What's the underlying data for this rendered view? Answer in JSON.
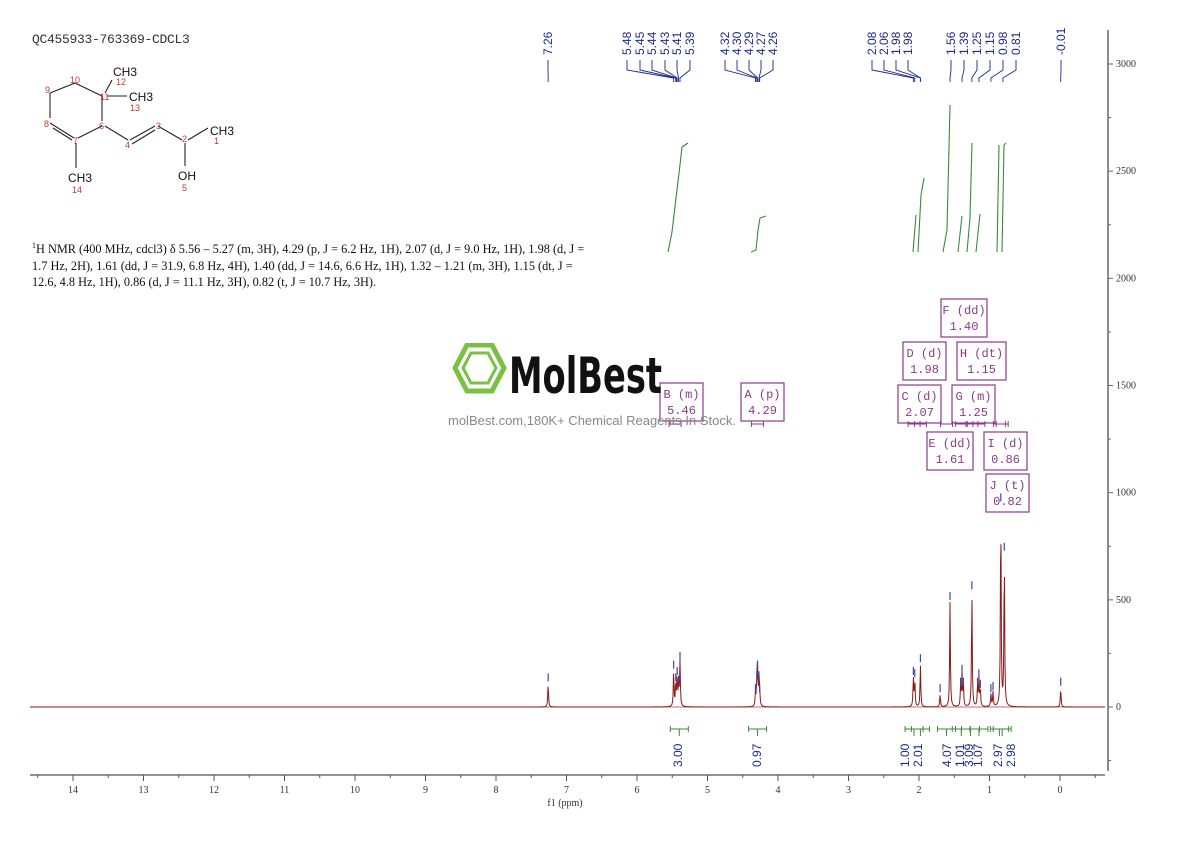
{
  "sample_id": "QC455933-763369-CDCL3",
  "structure": {
    "atoms": [
      {
        "label": "CH3",
        "num": "12"
      },
      {
        "label": "CH3",
        "num": "13"
      },
      {
        "label": "CH3",
        "num": "1"
      },
      {
        "label": "OH",
        "num": "5"
      },
      {
        "label": "CH3",
        "num": "14"
      }
    ],
    "numbers": [
      "1",
      "2",
      "3",
      "4",
      "5",
      "6",
      "7",
      "8",
      "9",
      "10",
      "11",
      "12",
      "13",
      "14"
    ]
  },
  "nmr_description": {
    "prefix_sup": "1",
    "text": "H NMR (400 MHz, cdcl3) δ 5.56 – 5.27 (m, 3H), 4.29 (p, J = 6.2 Hz, 1H), 2.07 (d, J = 9.0 Hz, 1H), 1.98 (d, J = 1.7 Hz, 2H), 1.61 (dd, J = 31.9, 6.8 Hz, 4H), 1.40 (dd, J = 14.6, 6.6 Hz, 1H), 1.32 – 1.21 (m, 3H), 1.15 (dt, J = 12.6, 4.8 Hz, 1H), 0.86 (d, J = 11.1 Hz, 3H), 0.82 (t, J = 10.7 Hz, 3H)."
  },
  "watermark": {
    "brand": "MolBest",
    "tagline": "molBest.com,180K+ Chemical Reagents In Stock."
  },
  "chart_data": {
    "type": "line",
    "title": "QC455933-763369-CDCL3",
    "xlabel": "f1 (ppm)",
    "ylabel": "",
    "xlim": [
      14.6,
      -0.6
    ],
    "ylim": [
      -300,
      3200
    ],
    "x_ticks": [
      "14",
      "13",
      "12",
      "11",
      "10",
      "9",
      "8",
      "7",
      "6",
      "5",
      "4",
      "3",
      "2",
      "1",
      "0"
    ],
    "y_ticks": [
      "0",
      "500",
      "1000",
      "1500",
      "2000",
      "2500",
      "3000"
    ],
    "grid": false,
    "peak_labels": [
      "7.26",
      "5.48",
      "5.45",
      "5.44",
      "5.43",
      "5.41",
      "5.39",
      "4.32",
      "4.30",
      "4.29",
      "4.27",
      "4.26",
      "2.08",
      "2.06",
      "1.98",
      "1.98",
      "1.56",
      "1.39",
      "1.25",
      "1.15",
      "0.98",
      "0.81",
      "-0.01"
    ],
    "peaks": [
      {
        "ppm": 7.26,
        "intensity": 110
      },
      {
        "ppm": 5.48,
        "intensity": 170
      },
      {
        "ppm": 5.45,
        "intensity": 110
      },
      {
        "ppm": 5.43,
        "intensity": 140
      },
      {
        "ppm": 5.41,
        "intensity": 100
      },
      {
        "ppm": 5.39,
        "intensity": 210
      },
      {
        "ppm": 4.32,
        "intensity": 60
      },
      {
        "ppm": 4.3,
        "intensity": 120
      },
      {
        "ppm": 4.29,
        "intensity": 170
      },
      {
        "ppm": 4.27,
        "intensity": 120
      },
      {
        "ppm": 4.26,
        "intensity": 60
      },
      {
        "ppm": 2.08,
        "intensity": 140
      },
      {
        "ppm": 2.06,
        "intensity": 130
      },
      {
        "ppm": 1.98,
        "intensity": 200
      },
      {
        "ppm": 1.7,
        "intensity": 60
      },
      {
        "ppm": 1.56,
        "intensity": 490
      },
      {
        "ppm": 1.41,
        "intensity": 90
      },
      {
        "ppm": 1.39,
        "intensity": 150
      },
      {
        "ppm": 1.37,
        "intensity": 90
      },
      {
        "ppm": 1.25,
        "intensity": 540
      },
      {
        "ppm": 1.17,
        "intensity": 90
      },
      {
        "ppm": 1.15,
        "intensity": 130
      },
      {
        "ppm": 1.13,
        "intensity": 80
      },
      {
        "ppm": 0.98,
        "intensity": 60
      },
      {
        "ppm": 0.95,
        "intensity": 70
      },
      {
        "ppm": 0.84,
        "intensity": 950
      },
      {
        "ppm": 0.79,
        "intensity": 720
      },
      {
        "ppm": -0.01,
        "intensity": 90
      }
    ],
    "multiplets": [
      {
        "id": "A",
        "type": "p",
        "shift": "4.29"
      },
      {
        "id": "B",
        "type": "m",
        "shift": "5.46"
      },
      {
        "id": "C",
        "type": "d",
        "shift": "2.07"
      },
      {
        "id": "D",
        "type": "d",
        "shift": "1.98"
      },
      {
        "id": "E",
        "type": "dd",
        "shift": "1.61"
      },
      {
        "id": "F",
        "type": "dd",
        "shift": "1.40"
      },
      {
        "id": "G",
        "type": "m",
        "shift": "1.25"
      },
      {
        "id": "H",
        "type": "dt",
        "shift": "1.15"
      },
      {
        "id": "I",
        "type": "d",
        "shift": "0.86"
      },
      {
        "id": "J",
        "type": "t",
        "shift": "0.82"
      }
    ],
    "integrations": [
      {
        "center": 5.4,
        "value": "3.00"
      },
      {
        "center": 4.29,
        "value": "0.97"
      },
      {
        "center": 2.07,
        "value": "1.00"
      },
      {
        "center": 1.98,
        "value": "2.01"
      },
      {
        "center": 1.61,
        "value": "4.07"
      },
      {
        "center": 1.4,
        "value": "1.01"
      },
      {
        "center": 1.27,
        "value": "3.09"
      },
      {
        "center": 1.15,
        "value": "1.07"
      },
      {
        "center": 0.86,
        "value": "2.97"
      },
      {
        "center": 0.82,
        "value": "2.98"
      }
    ]
  },
  "colors": {
    "spectrum": "#8b1a1a",
    "peak_label": "#1b2a8c",
    "integral": "#3a8a3a",
    "multiplet_box": "#8b3a8b",
    "axis": "#555555",
    "logo_green": "#7ac143"
  }
}
